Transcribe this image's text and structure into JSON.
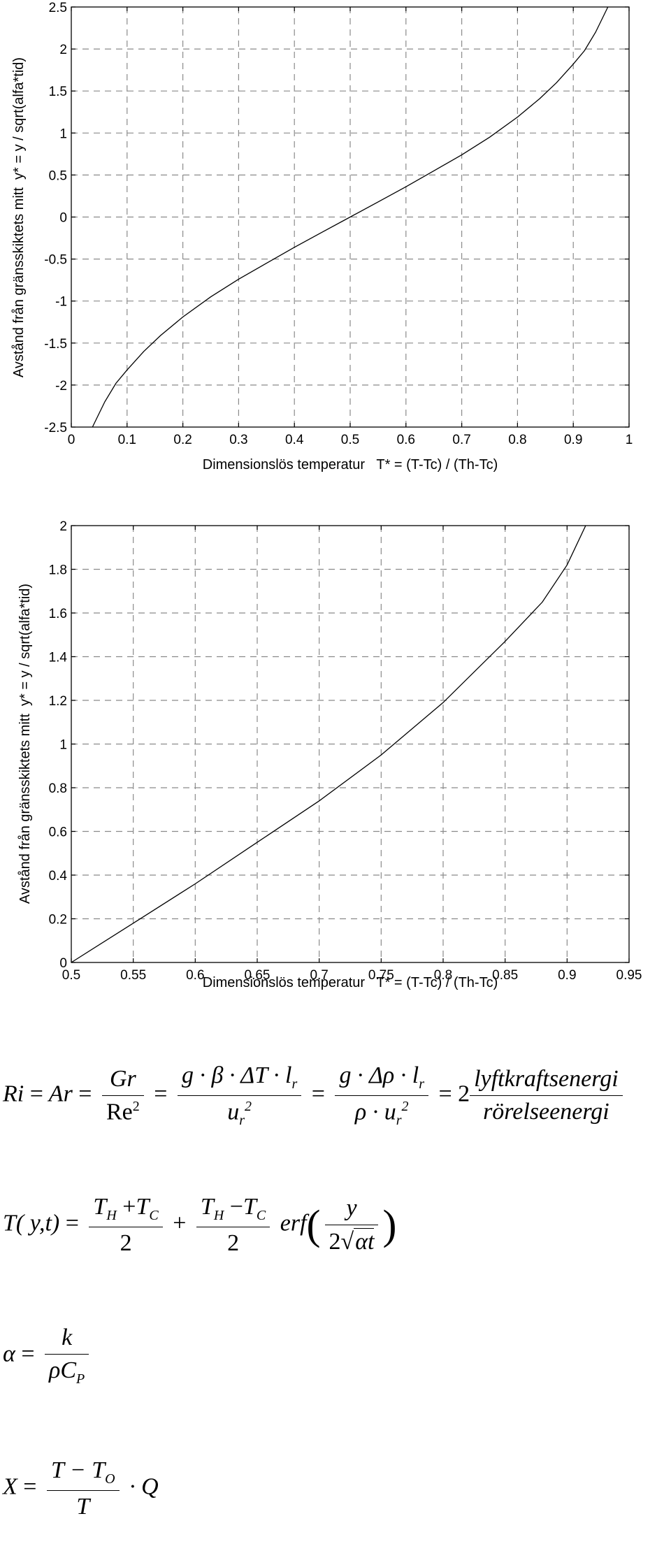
{
  "chart_data": [
    {
      "type": "line",
      "xlabel": "Dimensionslös temperatur   T* = (T-Tc) / (Th-Tc)",
      "ylabel": "Avstånd från gränsskiktets mitt  y* = y / sqrt(alfa*tid)",
      "xlim": [
        0,
        1
      ],
      "ylim": [
        -2.5,
        2.5
      ],
      "xticks": [
        "0",
        "0.1",
        "0.2",
        "0.3",
        "0.4",
        "0.5",
        "0.6",
        "0.7",
        "0.8",
        "0.9",
        "1"
      ],
      "yticks": [
        "-2.5",
        "-2",
        "-1.5",
        "-1",
        "-0.5",
        "0",
        "0.5",
        "1",
        "1.5",
        "2",
        "2.5"
      ],
      "grid": true,
      "series": [
        {
          "x": [
            0.038,
            0.06,
            0.08,
            0.1,
            0.13,
            0.16,
            0.2,
            0.25,
            0.3,
            0.35,
            0.4,
            0.45,
            0.5,
            0.55,
            0.6,
            0.65,
            0.7,
            0.75,
            0.8,
            0.84,
            0.87,
            0.9,
            0.92,
            0.94,
            0.962
          ],
          "y": [
            -2.5,
            -2.2,
            -1.98,
            -1.82,
            -1.6,
            -1.41,
            -1.19,
            -0.95,
            -0.74,
            -0.55,
            -0.36,
            -0.18,
            0.0,
            0.18,
            0.36,
            0.55,
            0.74,
            0.95,
            1.19,
            1.41,
            1.6,
            1.82,
            1.98,
            2.2,
            2.5
          ]
        }
      ]
    },
    {
      "type": "line",
      "xlabel": "Dimensionslös temperatur   T* = (T-Tc) / (Th-Tc)",
      "ylabel": "Avstånd från gränsskiktets mitt  y* = y / sqrt(alfa*tid)",
      "xlim": [
        0.5,
        0.95
      ],
      "ylim": [
        0,
        2
      ],
      "xticks": [
        "0.5",
        "0.55",
        "0.6",
        "0.65",
        "0.7",
        "0.75",
        "0.8",
        "0.85",
        "0.9",
        "0.95"
      ],
      "yticks": [
        "0",
        "0.2",
        "0.4",
        "0.6",
        "0.8",
        "1",
        "1.2",
        "1.4",
        "1.6",
        "1.8",
        "2"
      ],
      "grid": true,
      "series": [
        {
          "x": [
            0.5,
            0.55,
            0.6,
            0.65,
            0.7,
            0.75,
            0.8,
            0.85,
            0.88,
            0.9,
            0.915
          ],
          "y": [
            0.0,
            0.18,
            0.36,
            0.55,
            0.74,
            0.95,
            1.19,
            1.47,
            1.65,
            1.82,
            2.0
          ]
        }
      ]
    }
  ],
  "equations": {
    "eq1": {
      "lhs": "Ri",
      "eq": "=",
      "ar": "Ar",
      "gr": "Gr",
      "re": "Re",
      "re_exp": "2",
      "f2_num": "g · β · ΔT · l",
      "f2_num_sub": "r",
      "f2_den": "u",
      "f2_den_sub": "r",
      "f2_den_sup": "2",
      "f3_num": "g · Δρ · l",
      "f3_num_sub": "r",
      "f3_den": "ρ · u",
      "f3_den_sub": "r",
      "f3_den_sup": "2",
      "coef": "2",
      "words_num": "lyftkraftsenergi",
      "words_den": "rörelseenergi"
    },
    "eq2": {
      "lhs": "T( y,t)",
      "eq": "=",
      "t": "T",
      "sub_h": "H",
      "sub_c": "C",
      "plus": "+",
      "minus": "−",
      "two": "2",
      "erf": "erf",
      "y": "y",
      "alpha_t": "αt",
      "lparen": "(",
      "rparen": ")"
    },
    "eq3": {
      "lhs": "α",
      "eq": "=",
      "num": "k",
      "den": "ρC",
      "den_sub": "P"
    },
    "eq4": {
      "lhs": "X",
      "eq": "=",
      "num": "T − T",
      "num_sub": "O",
      "den": "T",
      "tail": "· Q"
    }
  }
}
